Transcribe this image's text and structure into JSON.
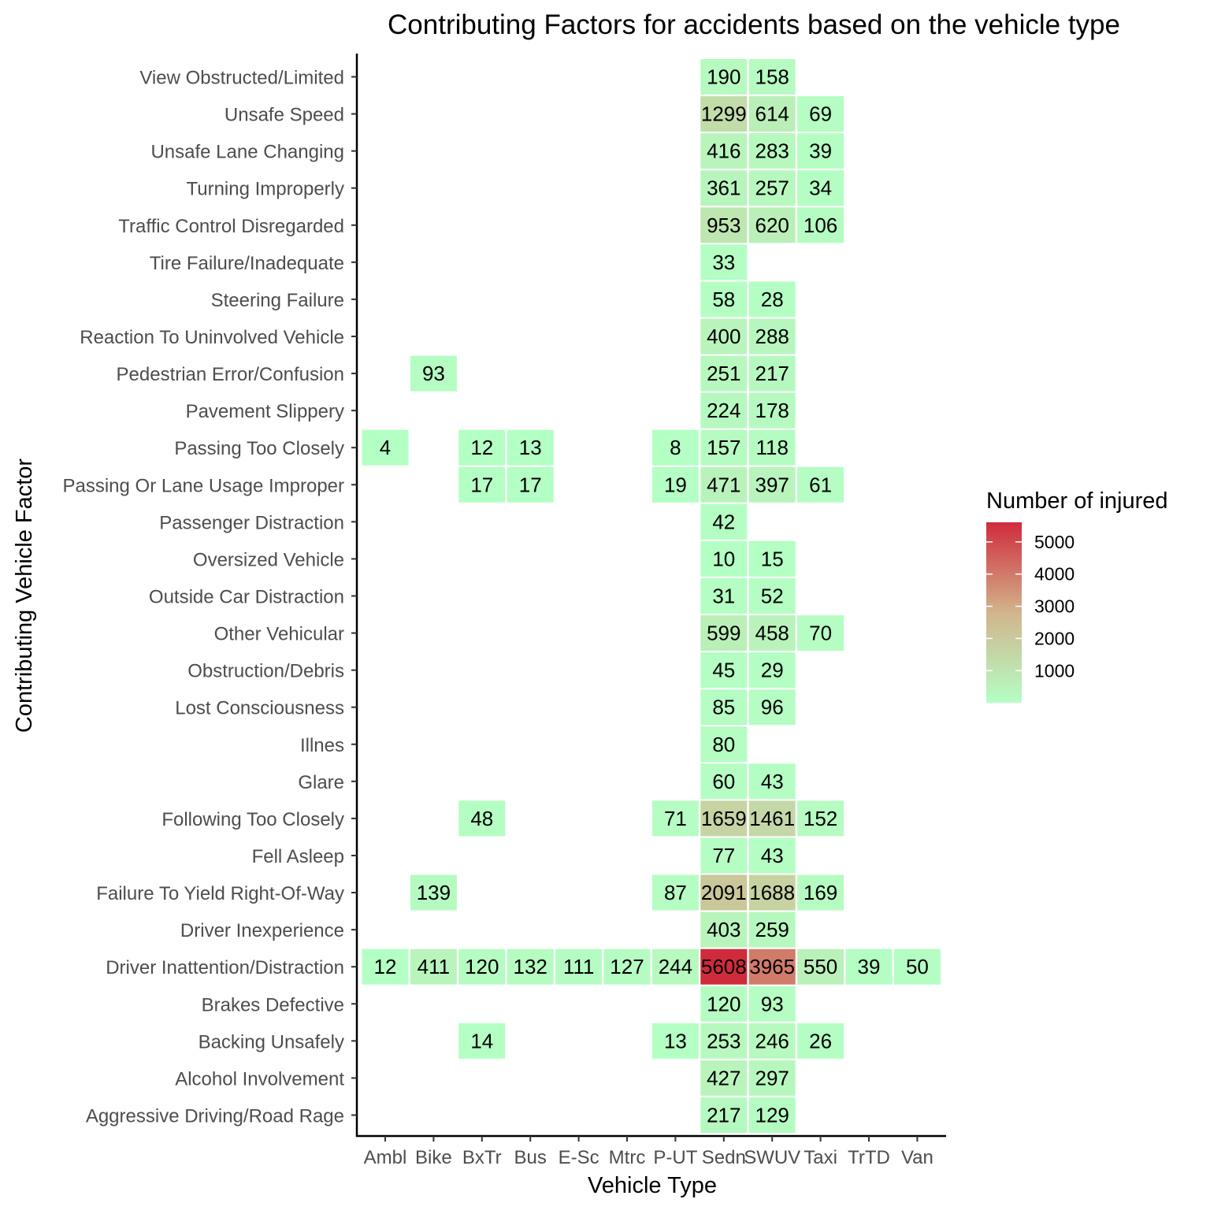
{
  "chart_data": {
    "type": "heatmap",
    "title": "Contributing Factors for accidents based on the vehicle type",
    "xlabel": "Vehicle Type",
    "ylabel": "Contributing Vehicle Factor",
    "x_categories": [
      "Ambl",
      "Bike",
      "BxTr",
      "Bus",
      "E-Sc",
      "Mtrc",
      "P-UT",
      "Sedn",
      "SWUV",
      "Taxi",
      "TrTD",
      "Van"
    ],
    "y_categories": [
      "Aggressive Driving/Road Rage",
      "Alcohol Involvement",
      "Backing Unsafely",
      "Brakes Defective",
      "Driver Inattention/Distraction",
      "Driver Inexperience",
      "Failure To Yield Right-Of-Way",
      "Fell Asleep",
      "Following Too Closely",
      "Glare",
      "Illnes",
      "Lost Consciousness",
      "Obstruction/Debris",
      "Other Vehicular",
      "Outside Car Distraction",
      "Oversized Vehicle",
      "Passenger Distraction",
      "Passing Or Lane Usage Improper",
      "Passing Too Closely",
      "Pavement Slippery",
      "Pedestrian Error/Confusion",
      "Reaction To Uninvolved Vehicle",
      "Steering Failure",
      "Tire Failure/Inadequate",
      "Traffic Control Disregarded",
      "Turning Improperly",
      "Unsafe Lane Changing",
      "Unsafe Speed",
      "View Obstructed/Limited"
    ],
    "cells": [
      {
        "y": "View Obstructed/Limited",
        "x": "Sedn",
        "value": 190
      },
      {
        "y": "View Obstructed/Limited",
        "x": "SWUV",
        "value": 158
      },
      {
        "y": "Unsafe Speed",
        "x": "Sedn",
        "value": 1299
      },
      {
        "y": "Unsafe Speed",
        "x": "SWUV",
        "value": 614
      },
      {
        "y": "Unsafe Speed",
        "x": "Taxi",
        "value": 69
      },
      {
        "y": "Unsafe Lane Changing",
        "x": "Sedn",
        "value": 416
      },
      {
        "y": "Unsafe Lane Changing",
        "x": "SWUV",
        "value": 283
      },
      {
        "y": "Unsafe Lane Changing",
        "x": "Taxi",
        "value": 39
      },
      {
        "y": "Turning Improperly",
        "x": "Sedn",
        "value": 361
      },
      {
        "y": "Turning Improperly",
        "x": "SWUV",
        "value": 257
      },
      {
        "y": "Turning Improperly",
        "x": "Taxi",
        "value": 34
      },
      {
        "y": "Traffic Control Disregarded",
        "x": "Sedn",
        "value": 953
      },
      {
        "y": "Traffic Control Disregarded",
        "x": "SWUV",
        "value": 620
      },
      {
        "y": "Traffic Control Disregarded",
        "x": "Taxi",
        "value": 106
      },
      {
        "y": "Tire Failure/Inadequate",
        "x": "Sedn",
        "value": 33
      },
      {
        "y": "Steering Failure",
        "x": "Sedn",
        "value": 58
      },
      {
        "y": "Steering Failure",
        "x": "SWUV",
        "value": 28
      },
      {
        "y": "Reaction To Uninvolved Vehicle",
        "x": "Sedn",
        "value": 400
      },
      {
        "y": "Reaction To Uninvolved Vehicle",
        "x": "SWUV",
        "value": 288
      },
      {
        "y": "Pedestrian Error/Confusion",
        "x": "Bike",
        "value": 93
      },
      {
        "y": "Pedestrian Error/Confusion",
        "x": "Sedn",
        "value": 251
      },
      {
        "y": "Pedestrian Error/Confusion",
        "x": "SWUV",
        "value": 217
      },
      {
        "y": "Pavement Slippery",
        "x": "Sedn",
        "value": 224
      },
      {
        "y": "Pavement Slippery",
        "x": "SWUV",
        "value": 178
      },
      {
        "y": "Passing Too Closely",
        "x": "Ambl",
        "value": 4
      },
      {
        "y": "Passing Too Closely",
        "x": "BxTr",
        "value": 12
      },
      {
        "y": "Passing Too Closely",
        "x": "Bus",
        "value": 13
      },
      {
        "y": "Passing Too Closely",
        "x": "P-UT",
        "value": 8
      },
      {
        "y": "Passing Too Closely",
        "x": "Sedn",
        "value": 157
      },
      {
        "y": "Passing Too Closely",
        "x": "SWUV",
        "value": 118
      },
      {
        "y": "Passing Or Lane Usage Improper",
        "x": "BxTr",
        "value": 17
      },
      {
        "y": "Passing Or Lane Usage Improper",
        "x": "Bus",
        "value": 17
      },
      {
        "y": "Passing Or Lane Usage Improper",
        "x": "P-UT",
        "value": 19
      },
      {
        "y": "Passing Or Lane Usage Improper",
        "x": "Sedn",
        "value": 471
      },
      {
        "y": "Passing Or Lane Usage Improper",
        "x": "SWUV",
        "value": 397
      },
      {
        "y": "Passing Or Lane Usage Improper",
        "x": "Taxi",
        "value": 61
      },
      {
        "y": "Passenger Distraction",
        "x": "Sedn",
        "value": 42
      },
      {
        "y": "Oversized Vehicle",
        "x": "Sedn",
        "value": 10
      },
      {
        "y": "Oversized Vehicle",
        "x": "SWUV",
        "value": 15
      },
      {
        "y": "Outside Car Distraction",
        "x": "Sedn",
        "value": 31
      },
      {
        "y": "Outside Car Distraction",
        "x": "SWUV",
        "value": 52
      },
      {
        "y": "Other Vehicular",
        "x": "Sedn",
        "value": 599
      },
      {
        "y": "Other Vehicular",
        "x": "SWUV",
        "value": 458
      },
      {
        "y": "Other Vehicular",
        "x": "Taxi",
        "value": 70
      },
      {
        "y": "Obstruction/Debris",
        "x": "Sedn",
        "value": 45
      },
      {
        "y": "Obstruction/Debris",
        "x": "SWUV",
        "value": 29
      },
      {
        "y": "Lost Consciousness",
        "x": "Sedn",
        "value": 85
      },
      {
        "y": "Lost Consciousness",
        "x": "SWUV",
        "value": 96
      },
      {
        "y": "Illnes",
        "x": "Sedn",
        "value": 80
      },
      {
        "y": "Glare",
        "x": "Sedn",
        "value": 60
      },
      {
        "y": "Glare",
        "x": "SWUV",
        "value": 43
      },
      {
        "y": "Following Too Closely",
        "x": "BxTr",
        "value": 48
      },
      {
        "y": "Following Too Closely",
        "x": "P-UT",
        "value": 71
      },
      {
        "y": "Following Too Closely",
        "x": "Sedn",
        "value": 1659
      },
      {
        "y": "Following Too Closely",
        "x": "SWUV",
        "value": 1461
      },
      {
        "y": "Following Too Closely",
        "x": "Taxi",
        "value": 152
      },
      {
        "y": "Fell Asleep",
        "x": "Sedn",
        "value": 77
      },
      {
        "y": "Fell Asleep",
        "x": "SWUV",
        "value": 43
      },
      {
        "y": "Failure To Yield Right-Of-Way",
        "x": "Bike",
        "value": 139
      },
      {
        "y": "Failure To Yield Right-Of-Way",
        "x": "P-UT",
        "value": 87
      },
      {
        "y": "Failure To Yield Right-Of-Way",
        "x": "Sedn",
        "value": 2091
      },
      {
        "y": "Failure To Yield Right-Of-Way",
        "x": "SWUV",
        "value": 1688
      },
      {
        "y": "Failure To Yield Right-Of-Way",
        "x": "Taxi",
        "value": 169
      },
      {
        "y": "Driver Inexperience",
        "x": "Sedn",
        "value": 403
      },
      {
        "y": "Driver Inexperience",
        "x": "SWUV",
        "value": 259
      },
      {
        "y": "Driver Inattention/Distraction",
        "x": "Ambl",
        "value": 12
      },
      {
        "y": "Driver Inattention/Distraction",
        "x": "Bike",
        "value": 411
      },
      {
        "y": "Driver Inattention/Distraction",
        "x": "BxTr",
        "value": 120
      },
      {
        "y": "Driver Inattention/Distraction",
        "x": "Bus",
        "value": 132
      },
      {
        "y": "Driver Inattention/Distraction",
        "x": "E-Sc",
        "value": 111
      },
      {
        "y": "Driver Inattention/Distraction",
        "x": "Mtrc",
        "value": 127
      },
      {
        "y": "Driver Inattention/Distraction",
        "x": "P-UT",
        "value": 244
      },
      {
        "y": "Driver Inattention/Distraction",
        "x": "Sedn",
        "value": 5608
      },
      {
        "y": "Driver Inattention/Distraction",
        "x": "SWUV",
        "value": 3965
      },
      {
        "y": "Driver Inattention/Distraction",
        "x": "Taxi",
        "value": 550
      },
      {
        "y": "Driver Inattention/Distraction",
        "x": "TrTD",
        "value": 39
      },
      {
        "y": "Driver Inattention/Distraction",
        "x": "Van",
        "value": 50
      },
      {
        "y": "Brakes Defective",
        "x": "Sedn",
        "value": 120
      },
      {
        "y": "Brakes Defective",
        "x": "SWUV",
        "value": 93
      },
      {
        "y": "Backing Unsafely",
        "x": "BxTr",
        "value": 14
      },
      {
        "y": "Backing Unsafely",
        "x": "P-UT",
        "value": 13
      },
      {
        "y": "Backing Unsafely",
        "x": "Sedn",
        "value": 253
      },
      {
        "y": "Backing Unsafely",
        "x": "SWUV",
        "value": 246
      },
      {
        "y": "Backing Unsafely",
        "x": "Taxi",
        "value": 26
      },
      {
        "y": "Alcohol Involvement",
        "x": "Sedn",
        "value": 427
      },
      {
        "y": "Alcohol Involvement",
        "x": "SWUV",
        "value": 297
      },
      {
        "y": "Aggressive Driving/Road Rage",
        "x": "Sedn",
        "value": 217
      },
      {
        "y": "Aggressive Driving/Road Rage",
        "x": "SWUV",
        "value": 129
      }
    ],
    "legend": {
      "title": "Number of injured",
      "ticks": [
        1000,
        2000,
        3000,
        4000,
        5000
      ],
      "range": [
        4,
        5608
      ],
      "colors": {
        "low": "#b4ffc4",
        "mid": "#d2b48c",
        "high": "#d02b3c"
      },
      "placement": "right"
    },
    "grid": false
  }
}
